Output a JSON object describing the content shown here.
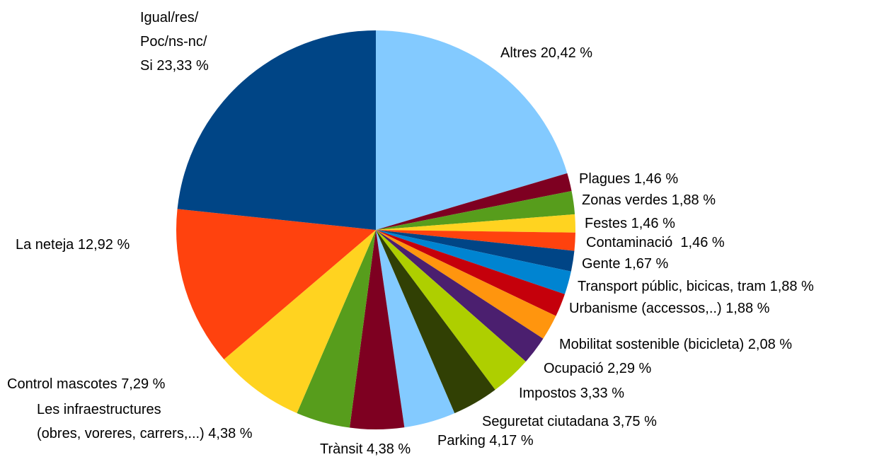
{
  "chart_data": {
    "type": "pie",
    "categories": [
      "Altres",
      "Plagues",
      "Zonas verdes",
      "Festes",
      "Contaminació ",
      "Gente",
      "Transport públic, bicicas, tram",
      "Urbanisme (accessos,..)",
      "Mobilitat sostenible (bicicleta)",
      "Ocupació",
      "Impostos",
      "Seguretat ciutadana",
      "Parking",
      "Trànsit",
      "Les infraestructures\n(obres, voreres, carrers,...)",
      "Control mascotes",
      "La neteja",
      "Igual/res/\nPoc/ns-nc/\nSi"
    ],
    "values": [
      20.42,
      1.46,
      1.88,
      1.46,
      1.46,
      1.67,
      1.88,
      1.88,
      2.08,
      2.29,
      3.33,
      3.75,
      4.17,
      4.38,
      4.38,
      7.29,
      12.92,
      23.33
    ],
    "value_labels": [
      "20,42 %",
      "1,46 %",
      "1,88 %",
      "1,46 %",
      "1,46 %",
      "1,67 %",
      "1,88 %",
      "1,88 %",
      "2,08 %",
      "2,29 %",
      "3,33 %",
      "3,75 %",
      "4,17 %",
      "4,38 %",
      "4,38 %",
      "7,29 %",
      "12,92 %",
      "23,33 %"
    ],
    "colors": [
      "#83caff",
      "#7e0021",
      "#579d1c",
      "#ffd320",
      "#ff420e",
      "#004586",
      "#0084d1",
      "#c5000b",
      "#ff950e",
      "#4b1f6f",
      "#aecf00",
      "#314004",
      "#83caff",
      "#7e0021",
      "#579d1c",
      "#ffd320",
      "#ff420e",
      "#004586"
    ]
  }
}
